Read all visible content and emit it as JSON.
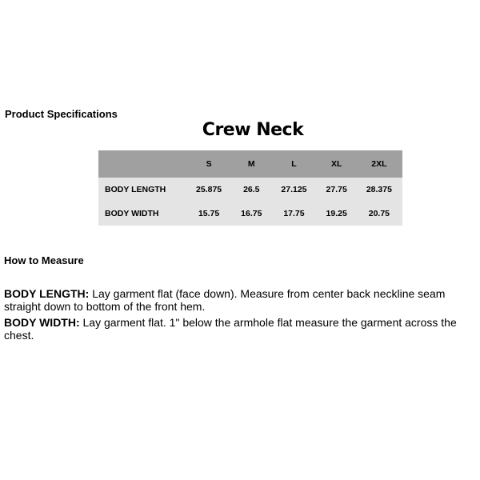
{
  "spec_title": "Product Specifications",
  "chart_title": "Crew Neck",
  "table": {
    "headers": [
      "",
      "S",
      "M",
      "L",
      "XL",
      "2XL"
    ],
    "rows": [
      {
        "label": "BODY LENGTH",
        "values": [
          "25.875",
          "26.5",
          "27.125",
          "27.75",
          "28.375"
        ]
      },
      {
        "label": "BODY WIDTH",
        "values": [
          "15.75",
          "16.75",
          "17.75",
          "19.25",
          "20.75"
        ]
      }
    ],
    "header_color": "#a0a0a0",
    "body_color": "#e4e4e4"
  },
  "how_title": "How to Measure",
  "instructions": [
    {
      "term": "BODY LENGTH:",
      "text": " Lay garment flat (face down). Measure from center back neckline seam straight down to bottom of the front hem."
    },
    {
      "term": "BODY WIDTH:",
      "text": " Lay garment flat. 1\" below the armhole flat measure the garment across the chest."
    }
  ]
}
